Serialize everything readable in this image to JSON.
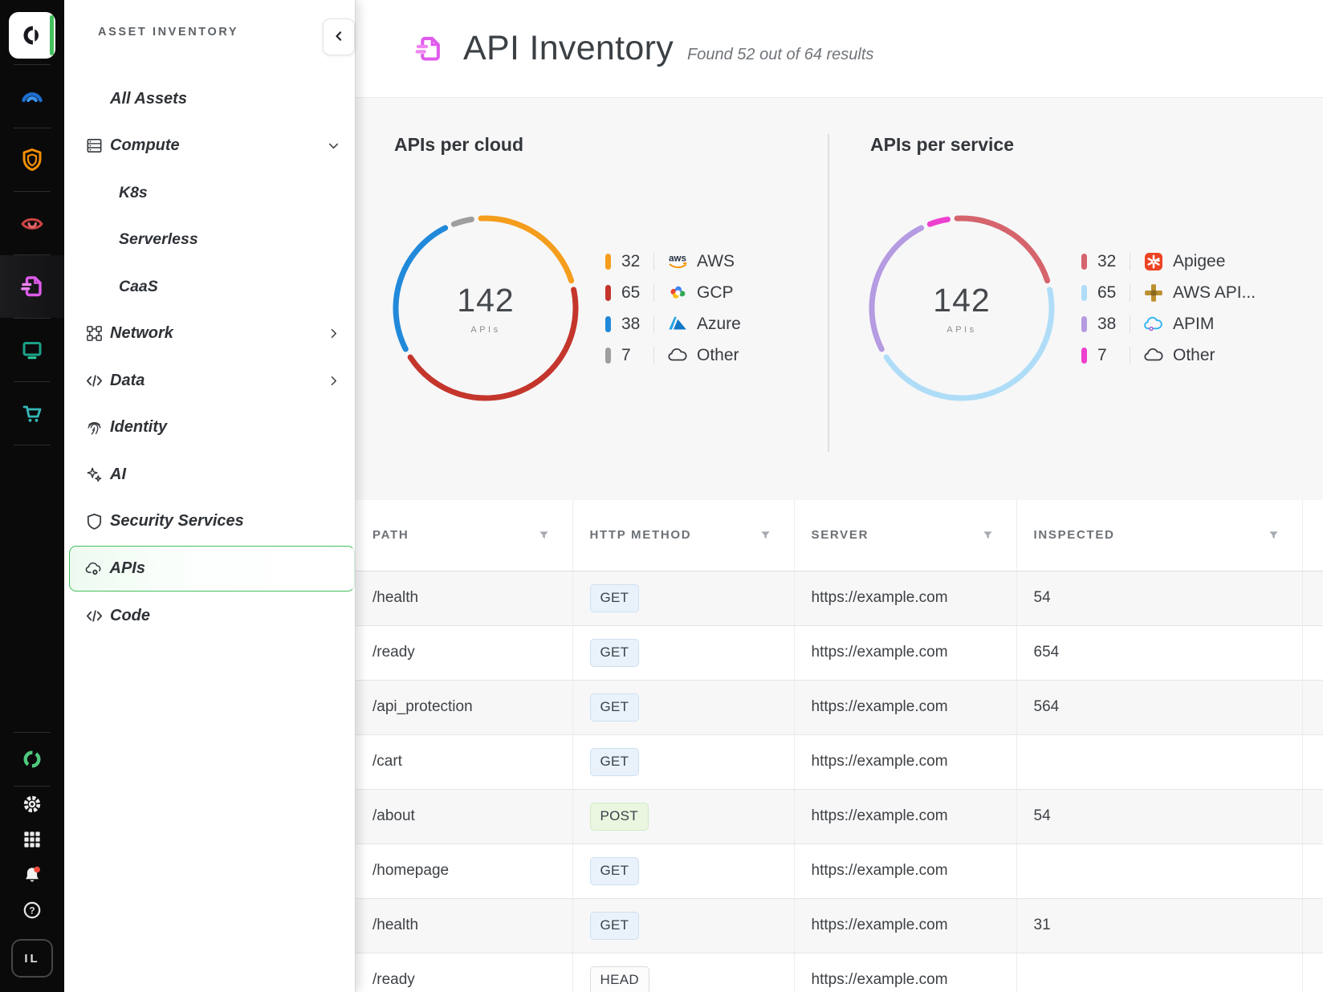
{
  "theme": {
    "accent": "#45C15E"
  },
  "rail": {
    "top_items": [
      {
        "icon": "orca-logo"
      },
      {
        "icon": "gauge-icon"
      },
      {
        "icon": "shield-orange-icon"
      },
      {
        "icon": "eye-icon"
      },
      {
        "icon": "api-doc-icon",
        "active": true
      },
      {
        "icon": "monitor-icon"
      },
      {
        "icon": "cart-icon"
      }
    ],
    "bottom_items": [
      {
        "icon": "ring-icon"
      },
      {
        "icon": "gear-icon"
      },
      {
        "icon": "grid-icon"
      },
      {
        "icon": "bell-icon",
        "badge": true
      },
      {
        "icon": "help-icon"
      }
    ],
    "avatar": "IL"
  },
  "sidebar": {
    "title": "ASSET INVENTORY",
    "items": [
      {
        "label": "All Assets",
        "indent": 1
      },
      {
        "label": "Compute",
        "icon": "servers-icon",
        "chevron": "down"
      },
      {
        "label": "K8s",
        "indent": 2
      },
      {
        "label": "Serverless",
        "indent": 2
      },
      {
        "label": "CaaS",
        "indent": 2
      },
      {
        "label": "Network",
        "icon": "network-icon",
        "chevron": "right"
      },
      {
        "label": "Data",
        "icon": "code-icon",
        "chevron": "right"
      },
      {
        "label": "Identity",
        "icon": "fingerprint-icon"
      },
      {
        "label": "AI",
        "icon": "sparkles-icon"
      },
      {
        "label": "Security Services",
        "icon": "shield-icon"
      },
      {
        "label": "APIs",
        "icon": "api-cloud-icon",
        "active": true
      },
      {
        "label": "Code",
        "icon": "code-icon"
      }
    ]
  },
  "header": {
    "title": "API Inventory",
    "subtitle": "Found 52 out of 64 results"
  },
  "chart_data": [
    {
      "type": "donut",
      "title": "APIs per cloud",
      "center_value": "142",
      "center_label": "APIs",
      "total": 142,
      "segments": [
        {
          "label": "AWS",
          "value": 32,
          "color": "#F59D1C",
          "icon": "aws-icon"
        },
        {
          "label": "GCP",
          "value": 65,
          "color": "#C4362C",
          "icon": "gcp-icon"
        },
        {
          "label": "Azure",
          "value": 38,
          "color": "#2189D9",
          "icon": "azure-icon"
        },
        {
          "label": "Other",
          "value": 7,
          "color": "#9E9E9E",
          "icon": "cloud-icon"
        }
      ]
    },
    {
      "type": "donut",
      "title": "APIs per service",
      "center_value": "142",
      "center_label": "APIs",
      "total": 142,
      "segments": [
        {
          "label": "Apigee",
          "value": 32,
          "color": "#D5646C",
          "icon": "apigee-icon"
        },
        {
          "label": "AWS API...",
          "value": 65,
          "color": "#AFDDF8",
          "icon": "aws-gateway-icon"
        },
        {
          "label": "APIM",
          "value": 38,
          "color": "#B59BE1",
          "icon": "apim-icon"
        },
        {
          "label": "Other",
          "value": 7,
          "color": "#EE40CF",
          "icon": "cloud-icon"
        }
      ]
    }
  ],
  "table": {
    "columns": [
      "PATH",
      "HTTP METHOD",
      "SERVER",
      "INSPECTED"
    ],
    "rows": [
      {
        "path": "/health",
        "method": "GET",
        "server": "https://example.com",
        "inspected": "54"
      },
      {
        "path": "/ready",
        "method": "GET",
        "server": "https://example.com",
        "inspected": "654"
      },
      {
        "path": "/api_protection",
        "method": "GET",
        "server": "https://example.com",
        "inspected": "564"
      },
      {
        "path": "/cart",
        "method": "GET",
        "server": "https://example.com",
        "inspected": ""
      },
      {
        "path": "/about",
        "method": "POST",
        "server": "https://example.com",
        "inspected": "54"
      },
      {
        "path": "/homepage",
        "method": "GET",
        "server": "https://example.com",
        "inspected": ""
      },
      {
        "path": "/health",
        "method": "GET",
        "server": "https://example.com",
        "inspected": "31"
      },
      {
        "path": "/ready",
        "method": "HEAD",
        "server": "https://example.com",
        "inspected": ""
      }
    ],
    "method_colors": {
      "GET": {
        "bg": "#e9f2fb",
        "border": "#cfe0f0"
      },
      "POST": {
        "bg": "#eaf6df",
        "border": "#d3e9c3"
      },
      "HEAD": {
        "bg": "#fcfcfc",
        "border": "#dcdcdc"
      }
    }
  }
}
